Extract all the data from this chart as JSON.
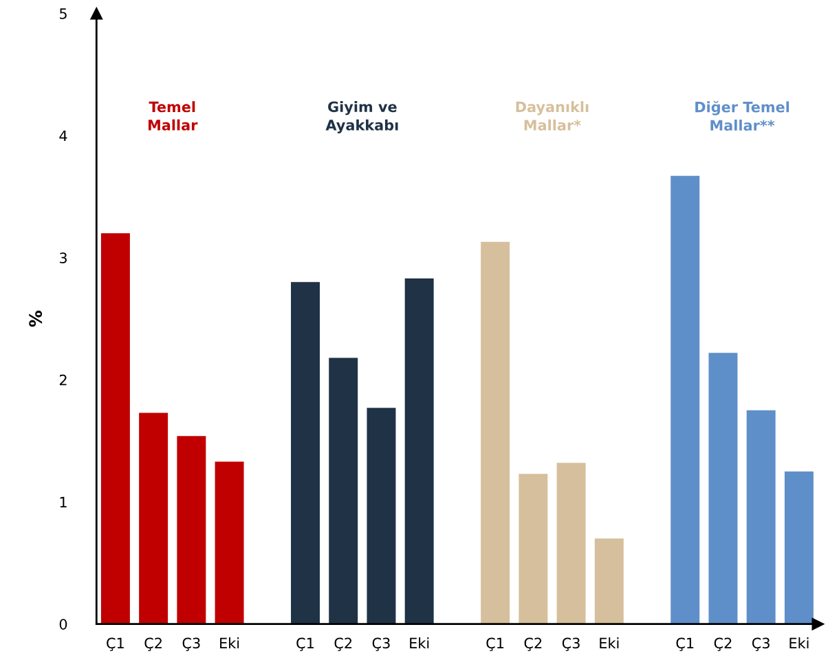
{
  "chart_data": {
    "type": "bar",
    "stacked": true,
    "ylabel": "%",
    "categories": [
      "Ç1",
      "Ç2",
      "Ç3",
      "Eki",
      null,
      "Ç1",
      "Ç2",
      "Ç3",
      "Eki",
      null,
      "Ç1",
      "Ç2",
      "Ç3",
      "Eki",
      null,
      "Ç1",
      "Ç2",
      "Ç3",
      "Eki"
    ],
    "series": [
      {
        "name": "Temel\nMallar",
        "color": "#c00000",
        "values": [
          3.2,
          1.73,
          1.54,
          1.33,
          null,
          null,
          null,
          null,
          null,
          null,
          null,
          null,
          null,
          null,
          null,
          null,
          null,
          null,
          null
        ]
      },
      {
        "name": "Giyim ve\nAyakkabı",
        "color": "#1f3246",
        "values": [
          null,
          null,
          null,
          null,
          null,
          2.8,
          2.18,
          1.77,
          2.83,
          null,
          null,
          null,
          null,
          null,
          null,
          null,
          null,
          null,
          null
        ]
      },
      {
        "name": "Dayanıklı\nMallar*",
        "color": "#d6bf9c",
        "values": [
          null,
          null,
          null,
          null,
          null,
          null,
          null,
          null,
          null,
          null,
          3.13,
          1.23,
          1.32,
          0.7,
          null,
          null,
          null,
          null,
          null
        ]
      },
      {
        "name": "Diğer Temel\nMallar**",
        "color": "#5f8fc9",
        "values": [
          null,
          null,
          null,
          null,
          null,
          null,
          null,
          null,
          null,
          null,
          null,
          null,
          null,
          null,
          null,
          3.67,
          2.22,
          1.75,
          1.25
        ]
      }
    ],
    "ylim": [
      0,
      5
    ],
    "yticks": [
      0,
      1,
      2,
      3,
      4,
      5
    ],
    "grid": false
  }
}
